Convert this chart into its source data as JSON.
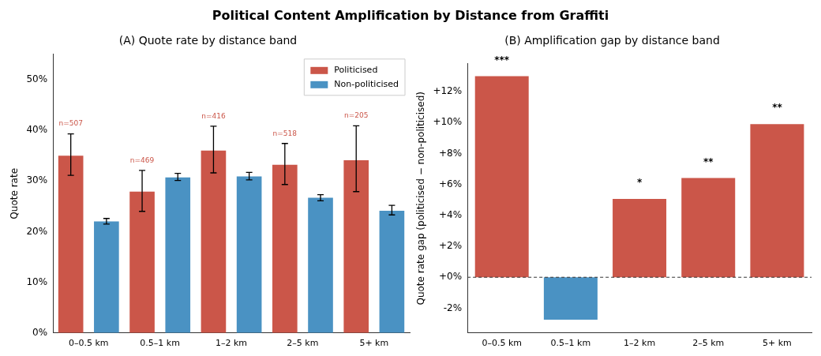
{
  "chart_data": [
    {
      "type": "bar",
      "title": "Political Content Amplification by Distance from Graffiti",
      "subtitle": "(A) Quote rate by distance band",
      "ylabel": "Quote rate",
      "categories": [
        "0–0.5 km",
        "0.5–1 km",
        "1–2 km",
        "2–5 km",
        "5+ km"
      ],
      "series": [
        {
          "name": "Politicised",
          "color": "#cb5649",
          "values": [
            35.0,
            27.9,
            36.0,
            33.2,
            34.1
          ],
          "errors": [
            [
              31.1,
              39.3
            ],
            [
              24.0,
              32.1
            ],
            [
              31.6,
              40.8
            ],
            [
              29.3,
              37.4
            ],
            [
              27.9,
              40.9
            ]
          ]
        },
        {
          "name": "Non-politicised",
          "color": "#4a92c3",
          "values": [
            22.0,
            30.7,
            30.9,
            26.7,
            24.1
          ],
          "errors": [
            [
              21.5,
              22.6
            ],
            [
              30.1,
              31.5
            ],
            [
              30.2,
              31.7
            ],
            [
              26.1,
              27.3
            ],
            [
              23.3,
              25.2
            ]
          ]
        }
      ],
      "ylim": [
        0,
        55
      ],
      "yticks": [
        {
          "value": 0,
          "label": "0%"
        },
        {
          "value": 10,
          "label": "10%"
        },
        {
          "value": 20,
          "label": "20%"
        },
        {
          "value": 30,
          "label": "30%"
        },
        {
          "value": 40,
          "label": "40%"
        },
        {
          "value": 50,
          "label": "50%"
        }
      ],
      "annotations": [
        "n=507",
        "n=469",
        "n=416",
        "n=518",
        "n=205"
      ],
      "grid": false,
      "legend": "top right"
    },
    {
      "type": "bar",
      "title": "(B) Amplification gap by distance band",
      "ylabel": "Quote rate gap (politicised − non-politicised)",
      "categories": [
        "0–0.5 km",
        "0.5–1 km",
        "1–2 km",
        "2–5 km",
        "5+ km"
      ],
      "values": [
        13.0,
        -2.74,
        5.06,
        6.42,
        9.9
      ],
      "colors": [
        "#cb5649",
        "#4a92c3",
        "#cb5649",
        "#cb5649",
        "#cb5649"
      ],
      "value_labels": [
        "***",
        null,
        "*",
        "**",
        "**"
      ],
      "ylim": [
        -3.6,
        13.8
      ],
      "yticks": [
        {
          "value": -2,
          "label": "-2%"
        },
        {
          "value": 0,
          "label": "+0%"
        },
        {
          "value": 2,
          "label": "+2%"
        },
        {
          "value": 4,
          "label": "+4%"
        },
        {
          "value": 6,
          "label": "+6%"
        },
        {
          "value": 8,
          "label": "+8%"
        },
        {
          "value": 10,
          "label": "+10%"
        },
        {
          "value": 12,
          "label": "+12%"
        }
      ],
      "ref_lines": [
        {
          "axis": "y",
          "value": 0,
          "color": "#333333",
          "line_style": "dashed"
        }
      ],
      "grid": false,
      "legend": false
    }
  ]
}
